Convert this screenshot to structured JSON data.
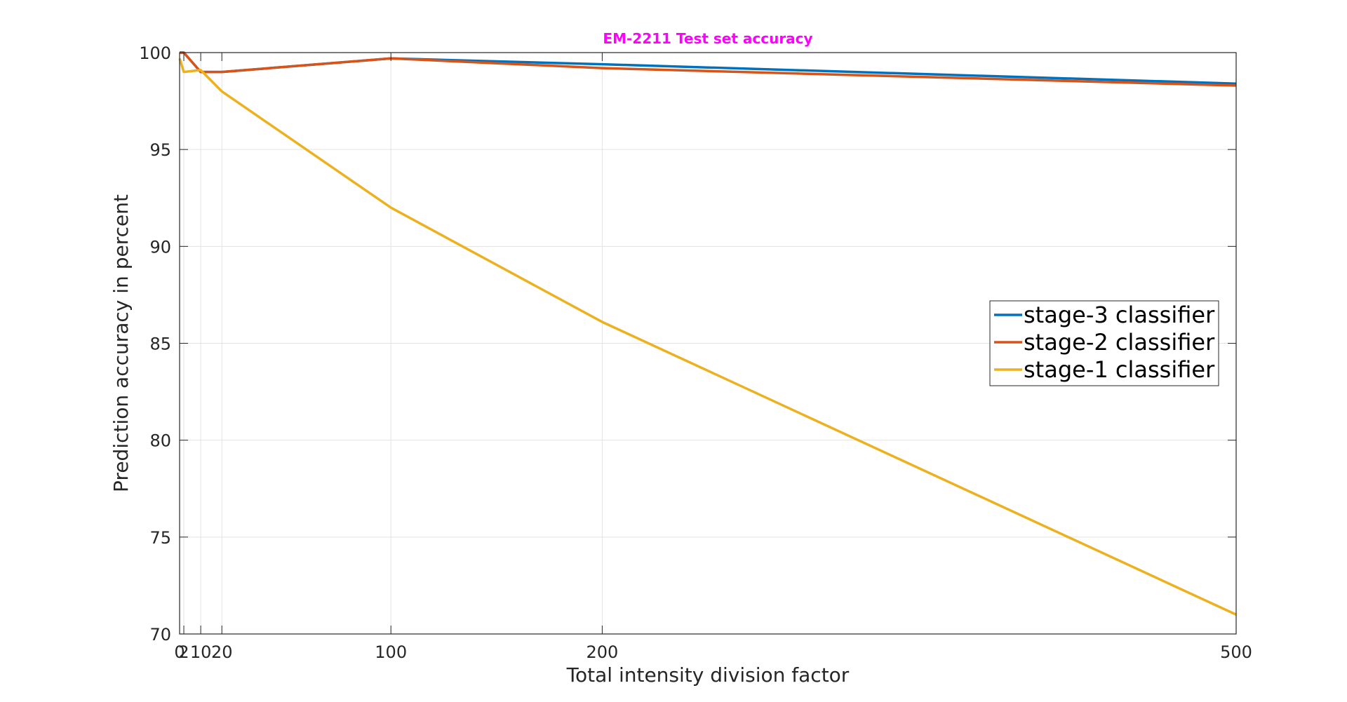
{
  "chart_data": {
    "type": "line",
    "title": "EM-2211 Test set accuracy",
    "title_color": "#FF00FF",
    "xlabel": "Total intensity division factor",
    "ylabel": "Prediction accuracy in percent",
    "xlim": [
      0,
      500
    ],
    "ylim": [
      70,
      100
    ],
    "xticks": [
      0,
      2,
      10,
      20,
      100,
      200,
      500
    ],
    "xtick_labels": [
      "0",
      "2",
      "10",
      "20",
      "100",
      "200",
      "500"
    ],
    "yticks": [
      70,
      75,
      80,
      85,
      90,
      95,
      100
    ],
    "ytick_labels": [
      "70",
      "75",
      "80",
      "85",
      "90",
      "95",
      "100"
    ],
    "grid": true,
    "legend_position": "right",
    "series": [
      {
        "name": "stage-3 classifier",
        "color": "#0072BD",
        "x": [
          0,
          2,
          10,
          20,
          100,
          200,
          500
        ],
        "y": [
          100,
          100,
          99,
          99,
          99.7,
          99.4,
          98.4
        ]
      },
      {
        "name": "stage-2 classifier",
        "color": "#D95319",
        "x": [
          0,
          2,
          10,
          20,
          100,
          200,
          500
        ],
        "y": [
          100,
          100,
          99,
          99,
          99.7,
          99.2,
          98.3
        ]
      },
      {
        "name": "stage-1 classifier",
        "color": "#EDB120",
        "x": [
          0,
          2,
          10,
          20,
          100,
          200,
          500
        ],
        "y": [
          99.7,
          99,
          99.1,
          98,
          92,
          86.1,
          71
        ]
      }
    ]
  }
}
